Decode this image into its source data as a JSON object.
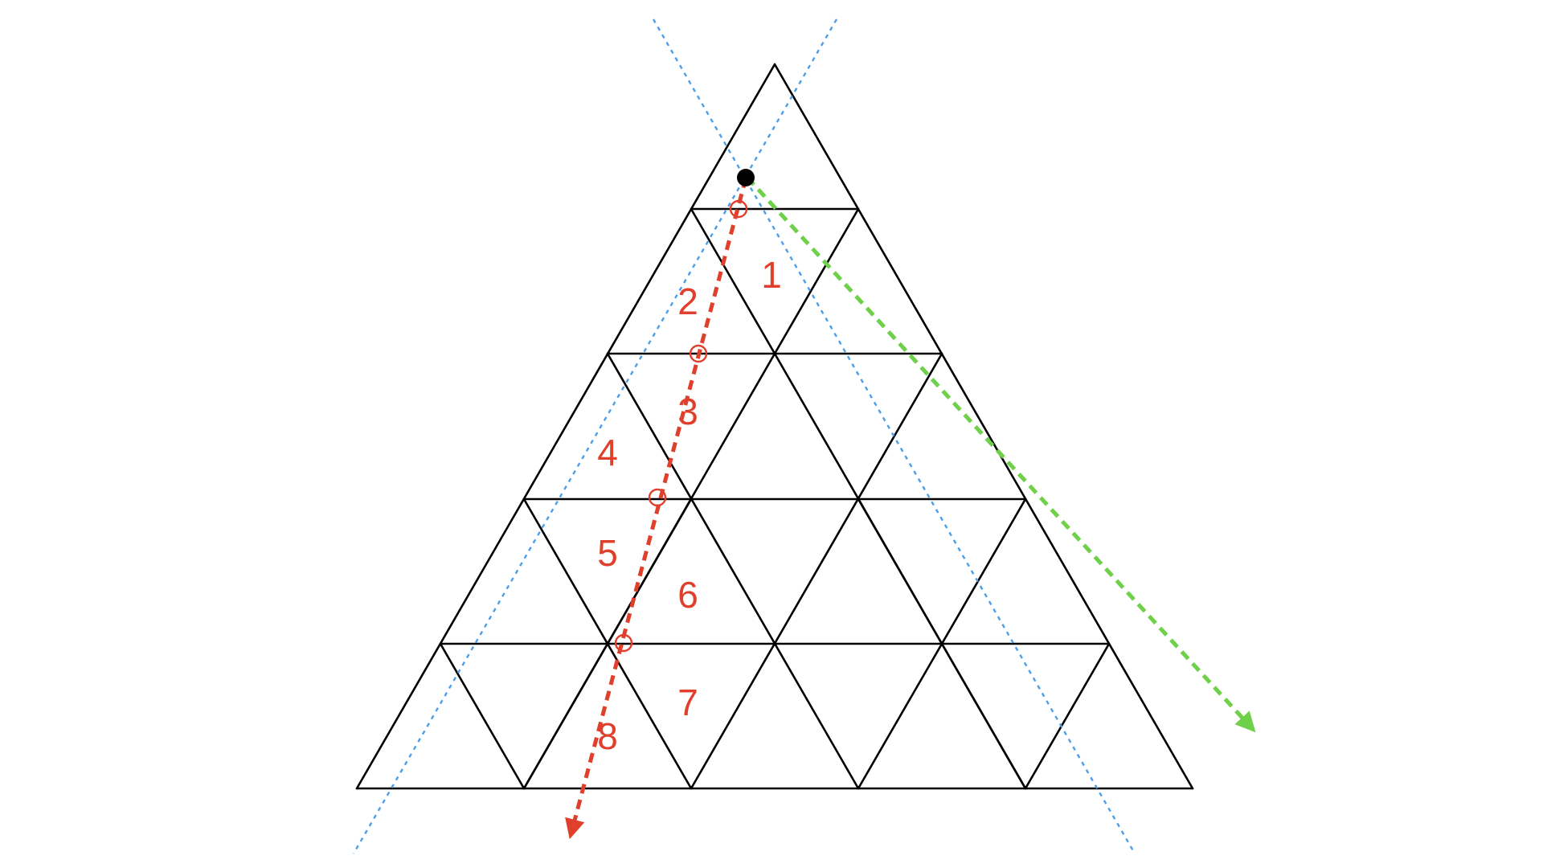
{
  "colors": {
    "grid": "#000000",
    "guide": "#4a9eea",
    "path": "#e0402b",
    "reflected": "#6fd04a",
    "source": "#000000"
  },
  "labels": [
    "1",
    "2",
    "3",
    "4",
    "5",
    "6",
    "7",
    "8"
  ],
  "crossing_count": 4
}
